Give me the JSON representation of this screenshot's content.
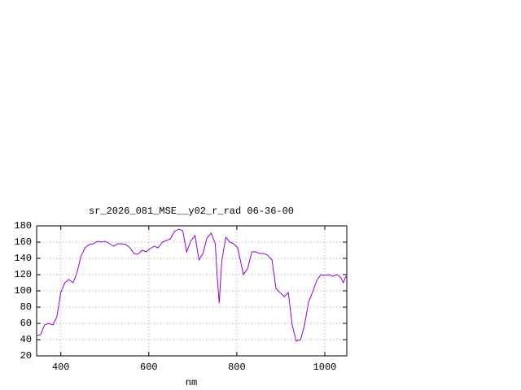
{
  "chart_data": {
    "type": "line",
    "title": "sr_2026_081_MSE__y02_r_rad 06-36-00",
    "x_label": "nm",
    "x": [
      345,
      354,
      363,
      372,
      382,
      391,
      400,
      409,
      418,
      428,
      437,
      446,
      455,
      465,
      474,
      483,
      492,
      501,
      511,
      520,
      529,
      538,
      548,
      557,
      566,
      575,
      585,
      594,
      603,
      612,
      621,
      631,
      640,
      649,
      658,
      668,
      677,
      686,
      695,
      705,
      714,
      723,
      732,
      742,
      751,
      756,
      760,
      766,
      775,
      784,
      793,
      802,
      815,
      825,
      834,
      843,
      852,
      861,
      870,
      880,
      889,
      898,
      908,
      917,
      926,
      935,
      945,
      954,
      963,
      972,
      982,
      991,
      1000,
      1009,
      1018,
      1028,
      1037,
      1042,
      1048
    ],
    "series": [
      {
        "color": "#9400d3",
        "values": [
          45,
          46,
          58,
          60,
          58,
          68,
          98,
          110,
          114,
          110,
          123,
          143,
          153,
          157,
          158,
          161,
          160,
          161,
          158,
          155,
          158,
          158,
          157,
          153,
          146,
          145,
          150,
          148,
          152,
          155,
          153,
          160,
          162,
          164,
          173,
          176,
          174,
          148,
          161,
          168,
          138,
          146,
          165,
          171,
          158,
          113,
          85,
          138,
          166,
          160,
          158,
          153,
          120,
          128,
          148,
          148,
          146,
          146,
          144,
          138,
          103,
          98,
          93,
          98,
          58,
          38,
          40,
          58,
          86,
          98,
          113,
          120,
          119,
          120,
          118,
          120,
          116,
          110,
          118
        ]
      }
    ],
    "xlim": [
      345,
      1050
    ],
    "ylim": [
      20,
      180
    ],
    "xticks": [
      400,
      600,
      800,
      1000
    ],
    "yticks": [
      20,
      40,
      60,
      80,
      100,
      120,
      140,
      160,
      180
    ],
    "grid": true
  }
}
